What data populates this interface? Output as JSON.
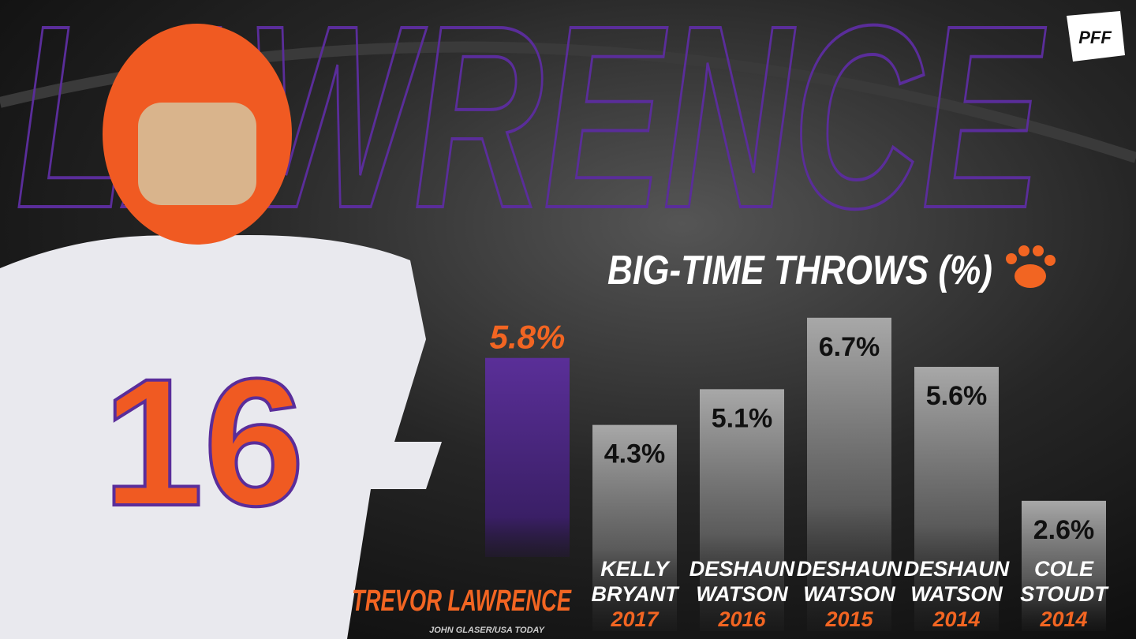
{
  "chart_data": {
    "type": "bar",
    "watermark": "LAWRENCE",
    "logo": "PFF",
    "title": "BIG-TIME THROWS (%)",
    "categories": [
      "TREVOR LAWRENCE",
      "KELLY BRYANT",
      "DESHAUN WATSON",
      "DESHAUN WATSON",
      "DESHAUN WATSON",
      "COLE STOUDT"
    ],
    "years": [
      null,
      "2017",
      "2016",
      "2015",
      "2014",
      "2014"
    ],
    "values": [
      5.8,
      4.3,
      5.1,
      6.7,
      5.6,
      2.6
    ],
    "value_labels": [
      "5.8%",
      "4.3%",
      "5.1%",
      "6.7%",
      "5.6%",
      "2.6%"
    ],
    "colors": [
      "#4e2a84",
      "#9a9a9a",
      "#9a9a9a",
      "#9a9a9a",
      "#9a9a9a",
      "#9a9a9a"
    ],
    "credit": "JOHN GLASER/USA TODAY"
  }
}
